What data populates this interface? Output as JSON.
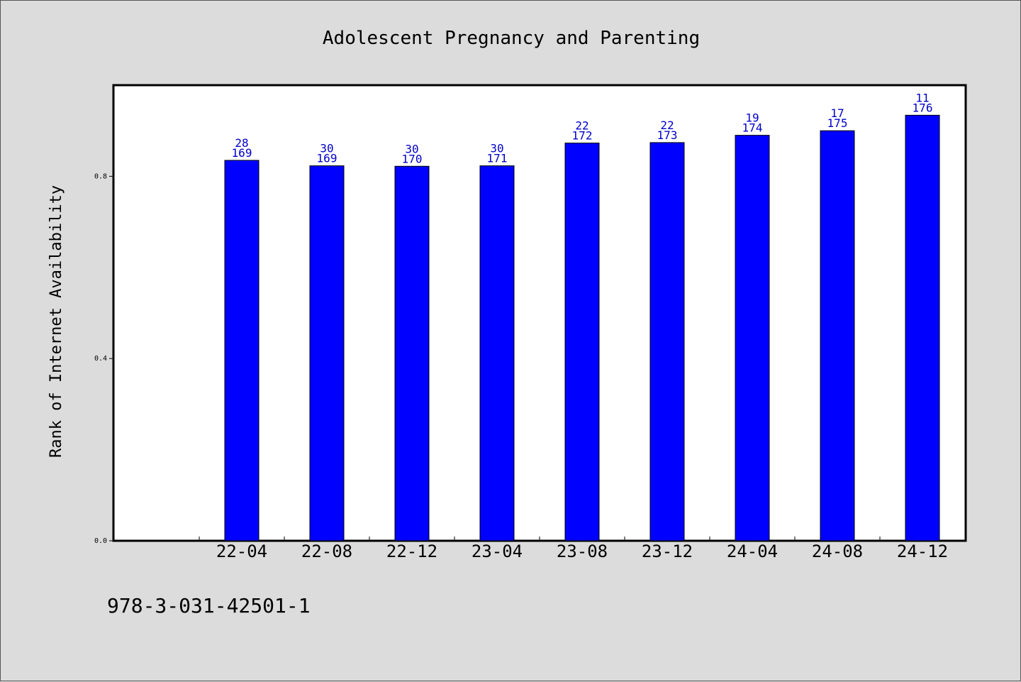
{
  "footer": {
    "code": "978-3-031-42501-1"
  },
  "colors": {
    "background": "#dcdcdc",
    "plot_area": "#ffffff",
    "bar": "#0000ff",
    "label": "#0000cc",
    "axis": "#000000"
  },
  "chart_data": {
    "type": "bar",
    "title": "Adolescent Pregnancy and Parenting",
    "xlabel": "",
    "ylabel": "Rank of Internet Availability",
    "categories": [
      "22-04",
      "22-08",
      "22-12",
      "23-04",
      "23-08",
      "23-12",
      "24-04",
      "24-08",
      "24-12"
    ],
    "values": [
      0.835,
      0.823,
      0.822,
      0.823,
      0.873,
      0.874,
      0.89,
      0.9,
      0.934
    ],
    "labels_top": [
      "28",
      "30",
      "30",
      "30",
      "22",
      "22",
      "19",
      "17",
      "11"
    ],
    "labels_bottom": [
      "169",
      "169",
      "170",
      "171",
      "172",
      "173",
      "174",
      "175",
      "176"
    ],
    "yticks": [
      "0.0",
      "0.4",
      "0.8"
    ],
    "ylim": [
      0,
      1.0
    ],
    "grid": false,
    "legend": "none"
  }
}
